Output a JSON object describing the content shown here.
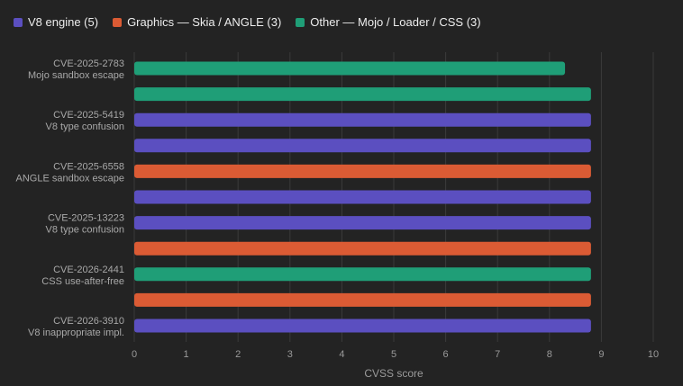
{
  "colors": {
    "background": "#232323",
    "grid": "#3a3a3a",
    "axis_text": "#9a9a9a",
    "label_text": "#a8a8a8",
    "legend_text": "#ededed"
  },
  "legend": [
    {
      "key": "v8",
      "label": "V8 engine (5)",
      "color": "#5b4fc0"
    },
    {
      "key": "gfx",
      "label": "Graphics — Skia / ANGLE (3)",
      "color": "#db5b34"
    },
    {
      "key": "other",
      "label": "Other — Mojo / Loader / CSS (3)",
      "color": "#1f9e77"
    }
  ],
  "chart_data": {
    "type": "bar",
    "orientation": "horizontal",
    "xlabel": "CVSS score",
    "xlim": [
      0,
      10
    ],
    "xticks": [
      0,
      1,
      2,
      3,
      4,
      5,
      6,
      7,
      8,
      9,
      10
    ],
    "grid": "vertical",
    "legend_position": "top-left",
    "bars": [
      {
        "label": [
          "CVE-2025-2783",
          "Mojo sandbox escape"
        ],
        "value": 8.3,
        "category": "other"
      },
      {
        "label": [],
        "value": 8.8,
        "category": "other"
      },
      {
        "label": [
          "CVE-2025-5419",
          "V8 type confusion"
        ],
        "value": 8.8,
        "category": "v8"
      },
      {
        "label": [],
        "value": 8.8,
        "category": "v8"
      },
      {
        "label": [
          "CVE-2025-6558",
          "ANGLE sandbox escape"
        ],
        "value": 8.8,
        "category": "gfx"
      },
      {
        "label": [],
        "value": 8.8,
        "category": "v8"
      },
      {
        "label": [
          "CVE-2025-13223",
          "V8 type confusion"
        ],
        "value": 8.8,
        "category": "v8"
      },
      {
        "label": [],
        "value": 8.8,
        "category": "gfx"
      },
      {
        "label": [
          "CVE-2026-2441",
          "CSS use-after-free"
        ],
        "value": 8.8,
        "category": "other"
      },
      {
        "label": [],
        "value": 8.8,
        "category": "gfx"
      },
      {
        "label": [
          "CVE-2026-3910",
          "V8 inappropriate impl."
        ],
        "value": 8.8,
        "category": "v8"
      }
    ]
  }
}
